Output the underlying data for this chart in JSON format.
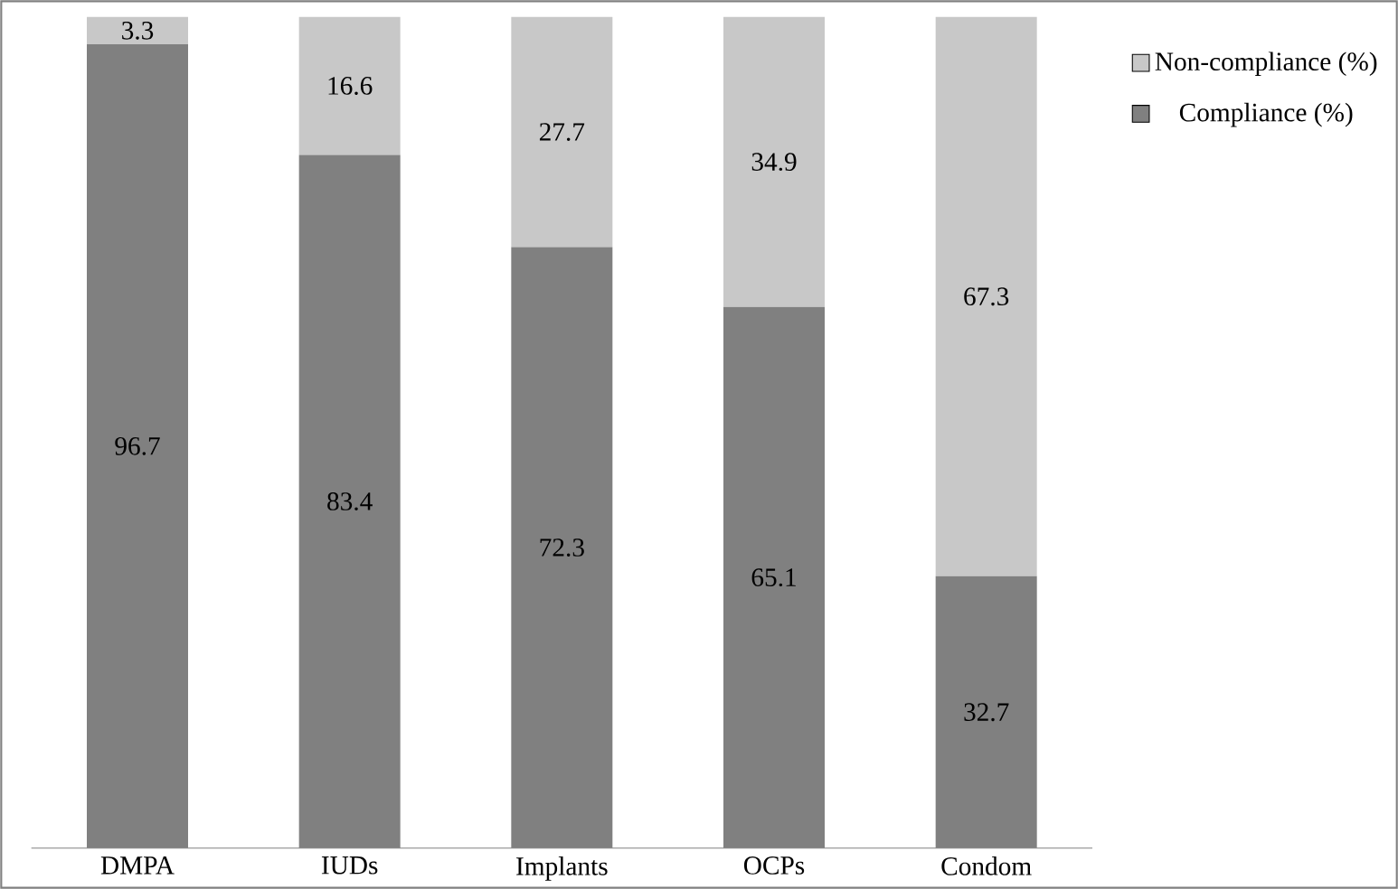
{
  "chart_data": {
    "type": "bar",
    "stacked": true,
    "categories": [
      "DMPA",
      "IUDs",
      "Implants",
      "OCPs",
      "Condom"
    ],
    "series": [
      {
        "name": "Compliance (%)",
        "color": "#808080",
        "values": [
          96.7,
          83.4,
          72.3,
          65.1,
          32.7
        ]
      },
      {
        "name": "Non-compliance (%)",
        "color": "#c8c8c8",
        "values": [
          3.3,
          16.6,
          27.7,
          34.9,
          67.3
        ]
      }
    ],
    "data_labels": true,
    "legend": "right"
  }
}
